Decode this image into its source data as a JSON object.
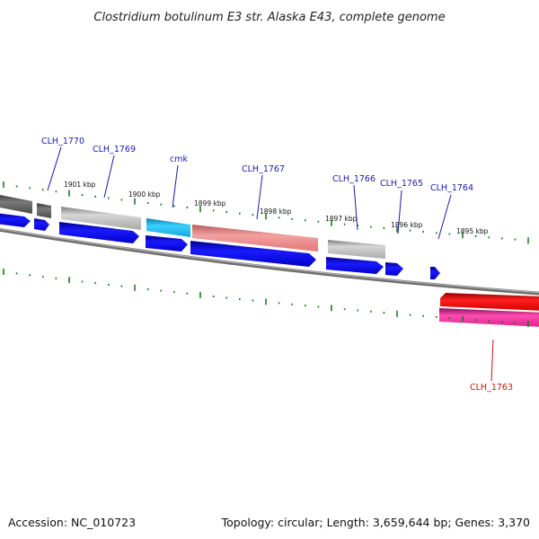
{
  "title": "Clostridium botulinum E3 str. Alaska E43, complete genome",
  "footer": {
    "accession": "Accession: NC_010723",
    "summary": "Topology: circular; Length: 3,659,644 bp; Genes: 3,370"
  },
  "scale_labels": [
    "1901 kbp",
    "1900 kbp",
    "1899 kbp",
    "1898 kbp",
    "1897 kbp",
    "1896 kbp",
    "1895 kbp"
  ],
  "gene_labels": [
    {
      "text": "CLH_1770",
      "strand": "forward"
    },
    {
      "text": "CLH_1769",
      "strand": "forward"
    },
    {
      "text": "cmk",
      "strand": "forward"
    },
    {
      "text": "CLH_1767",
      "strand": "forward"
    },
    {
      "text": "CLH_1766",
      "strand": "forward"
    },
    {
      "text": "CLH_1765",
      "strand": "forward"
    },
    {
      "text": "CLH_1764",
      "strand": "forward"
    },
    {
      "text": "CLH_1763",
      "strand": "reverse"
    }
  ],
  "colors": {
    "forward_label": "#1a1aa8",
    "reverse_label": "#cc1111",
    "cds_arrow": "#0c0ce0",
    "tick": "#1f7a1f",
    "backbone": "#7a7a7a",
    "gene_gray": "#b5b5b5",
    "gene_dark": "#555555",
    "gene_cyan": "#19b4e6",
    "gene_salmon": "#ee8080",
    "gene_red": "#e00000",
    "gene_magenta": "#e0208a"
  }
}
